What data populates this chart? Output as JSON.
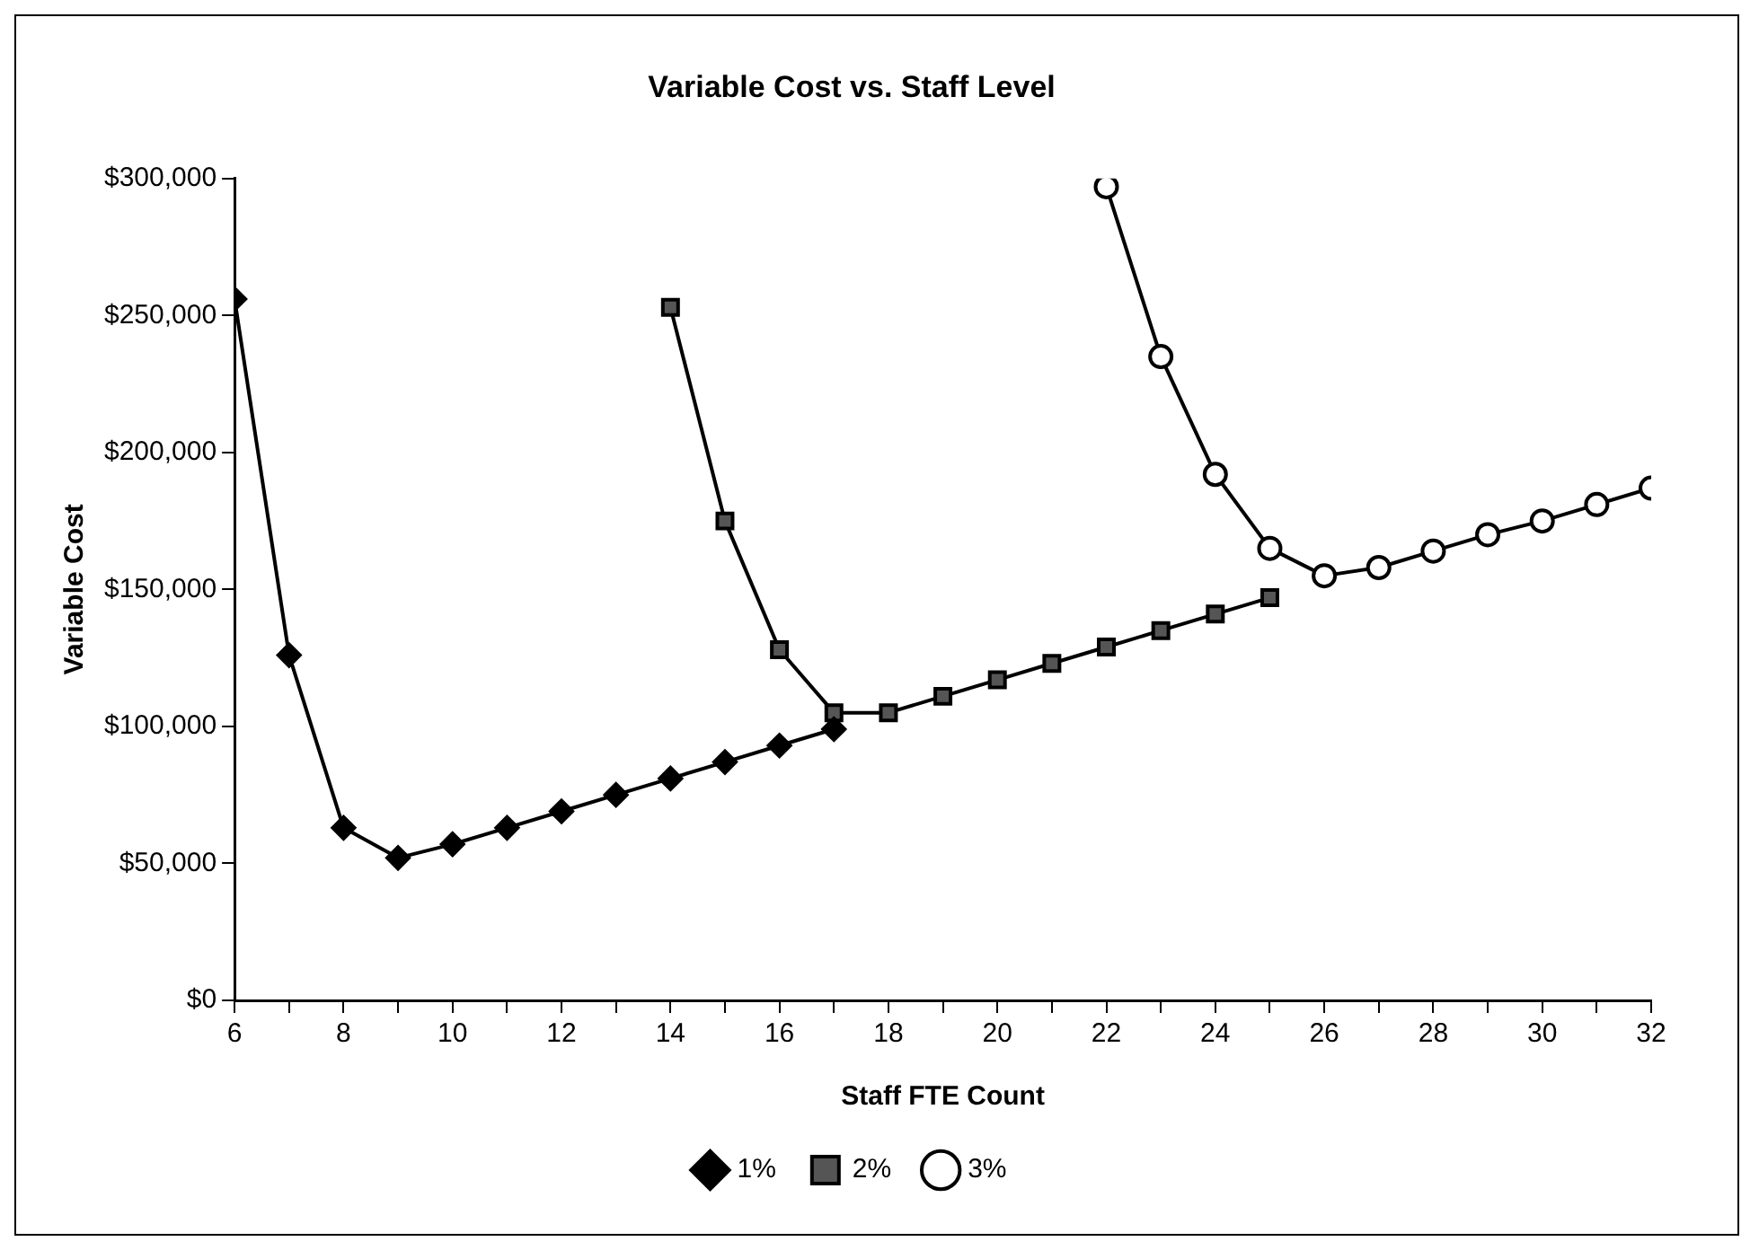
{
  "chart_data": {
    "type": "line",
    "title": "Variable Cost vs. Staff Level",
    "xlabel": "Staff FTE Count",
    "ylabel": "Variable Cost",
    "series": [
      {
        "name": "1%",
        "color": "#000000",
        "marker": "diamond",
        "x": [
          6,
          7,
          8,
          9,
          10,
          11,
          12,
          13,
          14,
          15,
          16,
          17
        ],
        "values": [
          256000,
          126000,
          63000,
          52000,
          57000,
          63000,
          69000,
          75000,
          81000,
          87000,
          93000,
          99000
        ]
      },
      {
        "name": "2%",
        "color": "#000000",
        "marker": "square",
        "x": [
          14,
          15,
          16,
          17,
          18,
          19,
          20,
          21,
          22,
          23,
          24,
          25
        ],
        "values": [
          253000,
          175000,
          128000,
          105000,
          105000,
          111000,
          117000,
          123000,
          129000,
          135000,
          141000,
          147000
        ]
      },
      {
        "name": "3%",
        "color": "#000000",
        "marker": "circle",
        "x": [
          22,
          23,
          24,
          25,
          26,
          27,
          28,
          29,
          30,
          31,
          32
        ],
        "values": [
          297000,
          235000,
          192000,
          165000,
          155000,
          158000,
          164000,
          170000,
          175000,
          181000,
          187000
        ]
      }
    ],
    "xlim": [
      6,
      32
    ],
    "xticks": [
      6,
      {
        "value": 7,
        "label": null
      },
      8,
      {
        "value": 9,
        "label": null
      },
      10,
      {
        "value": 11,
        "label": null
      },
      12,
      {
        "value": 13,
        "label": null
      },
      14,
      {
        "value": 15,
        "label": null
      },
      16,
      {
        "value": 17,
        "label": null
      },
      18,
      {
        "value": 19,
        "label": null
      },
      20,
      {
        "value": 21,
        "label": null
      },
      22,
      {
        "value": 23,
        "label": null
      },
      24,
      {
        "value": 25,
        "label": null
      },
      26,
      {
        "value": 27,
        "label": null
      },
      28,
      {
        "value": 29,
        "label": null
      },
      30,
      {
        "value": 31,
        "label": null
      },
      32
    ],
    "ylim": [
      0,
      300000
    ],
    "yticks": [
      {
        "value": 0,
        "label": "$0"
      },
      {
        "value": 50000,
        "label": "$50,000"
      },
      {
        "value": 100000,
        "label": "$100,000"
      },
      {
        "value": 150000,
        "label": "$150,000"
      },
      {
        "value": 200000,
        "label": "$200,000"
      },
      {
        "value": 250000,
        "label": "$250,000"
      },
      {
        "value": 300000,
        "label": "$300,000"
      }
    ],
    "grid": false,
    "legend": "bottom",
    "line_style": "solid"
  }
}
